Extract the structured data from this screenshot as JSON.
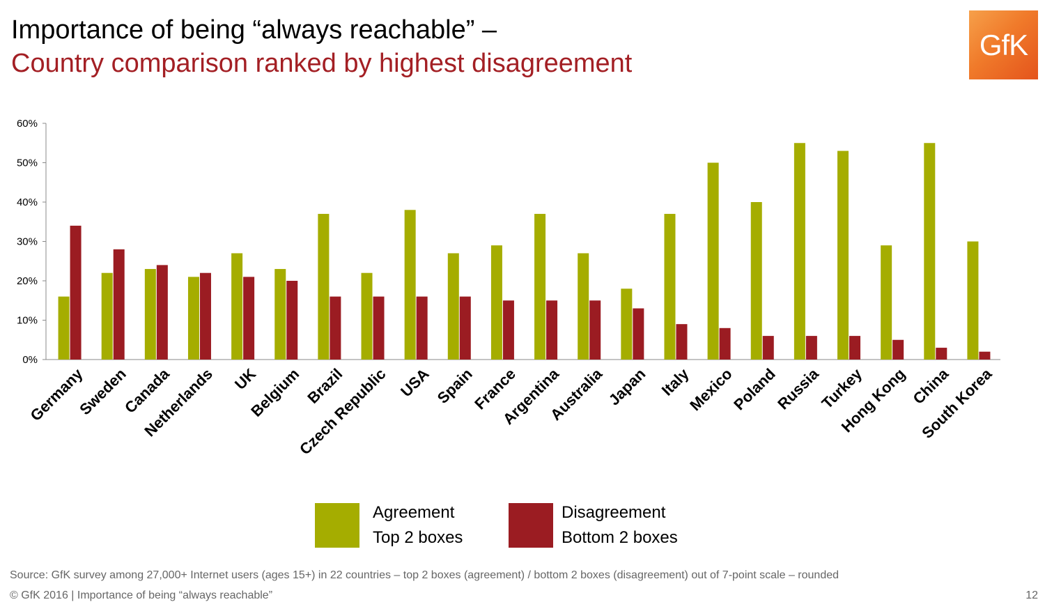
{
  "header": {
    "title": "Importance of being “always reachable” –",
    "subtitle": "Country comparison ranked by highest disagreement",
    "logo_text": "GfK"
  },
  "colors": {
    "agreement": "#a5ad00",
    "disagreement": "#9b1c22",
    "title_accent": "#a31f24",
    "logo": "#f07a2a"
  },
  "chart_data": {
    "type": "bar",
    "categories": [
      "Germany",
      "Sweden",
      "Canada",
      "Netherlands",
      "UK",
      "Belgium",
      "Brazil",
      "Czech Republic",
      "USA",
      "Spain",
      "France",
      "Argentina",
      "Australia",
      "Japan",
      "Italy",
      "Mexico",
      "Poland",
      "Russia",
      "Turkey",
      "Hong Kong",
      "China",
      "South Korea"
    ],
    "series": [
      {
        "name": "Agreement Top 2 boxes",
        "values": [
          16,
          22,
          23,
          21,
          27,
          23,
          37,
          22,
          38,
          27,
          29,
          37,
          27,
          18,
          37,
          50,
          40,
          55,
          53,
          29,
          55,
          30
        ]
      },
      {
        "name": "Disagreement Bottom 2 boxes",
        "values": [
          34,
          28,
          24,
          22,
          21,
          20,
          16,
          16,
          16,
          16,
          15,
          15,
          15,
          13,
          9,
          8,
          6,
          6,
          6,
          5,
          3,
          2
        ]
      }
    ],
    "ylim": [
      0,
      60
    ],
    "yticks": [
      0,
      10,
      20,
      30,
      40,
      50,
      60
    ],
    "ytick_labels": [
      "0%",
      "10%",
      "20%",
      "30%",
      "40%",
      "50%",
      "60%"
    ],
    "grid": false,
    "legend_position": "bottom"
  },
  "legend": {
    "agreement_line1": "Agreement",
    "agreement_line2": "Top 2 boxes",
    "disagreement_line1": "Disagreement",
    "disagreement_line2": "Bottom 2 boxes"
  },
  "footer": {
    "source": "Source: GfK survey among 27,000+ Internet users (ages 15+) in 22 countries – top 2 boxes (agreement) / bottom 2 boxes (disagreement) out of 7-point scale – rounded",
    "copyright": "© GfK 2016 | Importance of being “always reachable”",
    "page_number": "12"
  }
}
